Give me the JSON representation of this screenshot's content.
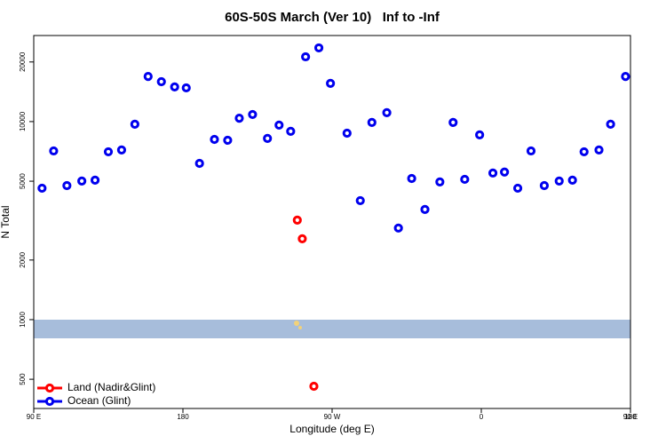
{
  "chart_data": {
    "type": "scatter",
    "title": "60S-50S March (Ver 10)   Inf to -Inf",
    "x_label": "Longitude (deg E)",
    "y_label": "N Total",
    "xlim": [
      90,
      450
    ],
    "xticks": [
      {
        "value": 90,
        "label": "90 E"
      },
      {
        "value": 180,
        "label": "180"
      },
      {
        "value": 270,
        "label": "90 W"
      },
      {
        "value": 360,
        "label": "0"
      },
      {
        "value": 450,
        "label": "90 E"
      },
      {
        "value": 540,
        "label": "180"
      }
    ],
    "ylim": [
      356,
      27200
    ],
    "yticks": [
      500,
      1000,
      2000,
      5000,
      10000,
      20000
    ],
    "ylog": true,
    "legend": "bottom-left",
    "series": [
      {
        "name": "Land (Nadir&Glint)",
        "color": "#ff0000",
        "x": [
          249,
          252,
          259
        ],
        "values": [
          3180,
          2560,
          461
        ]
      },
      {
        "name": "Ocean (Glint)",
        "color": "#0000ee",
        "x": [
          95,
          102,
          110,
          119,
          127,
          135,
          143,
          151,
          159,
          167,
          175,
          182,
          190,
          199,
          207,
          214,
          222,
          231,
          238,
          245,
          254,
          262,
          269,
          279,
          287,
          294,
          303,
          310,
          318,
          326,
          335,
          343,
          350,
          359,
          367,
          374,
          382,
          390,
          398,
          407,
          415,
          422,
          431,
          438,
          447
        ],
        "values": [
          4610,
          7110,
          4750,
          5010,
          5060,
          7040,
          7190,
          9700,
          16900,
          15900,
          14960,
          14800,
          6150,
          8130,
          8050,
          10400,
          10860,
          8220,
          9600,
          8930,
          21240,
          23560,
          15590,
          8740,
          3990,
          9900,
          11090,
          2900,
          5160,
          3600,
          4960,
          9900,
          5110,
          8570,
          5500,
          5560,
          4610,
          7110,
          4750,
          5010,
          5060,
          7040,
          7190,
          9700,
          16900
        ]
      }
    ]
  }
}
